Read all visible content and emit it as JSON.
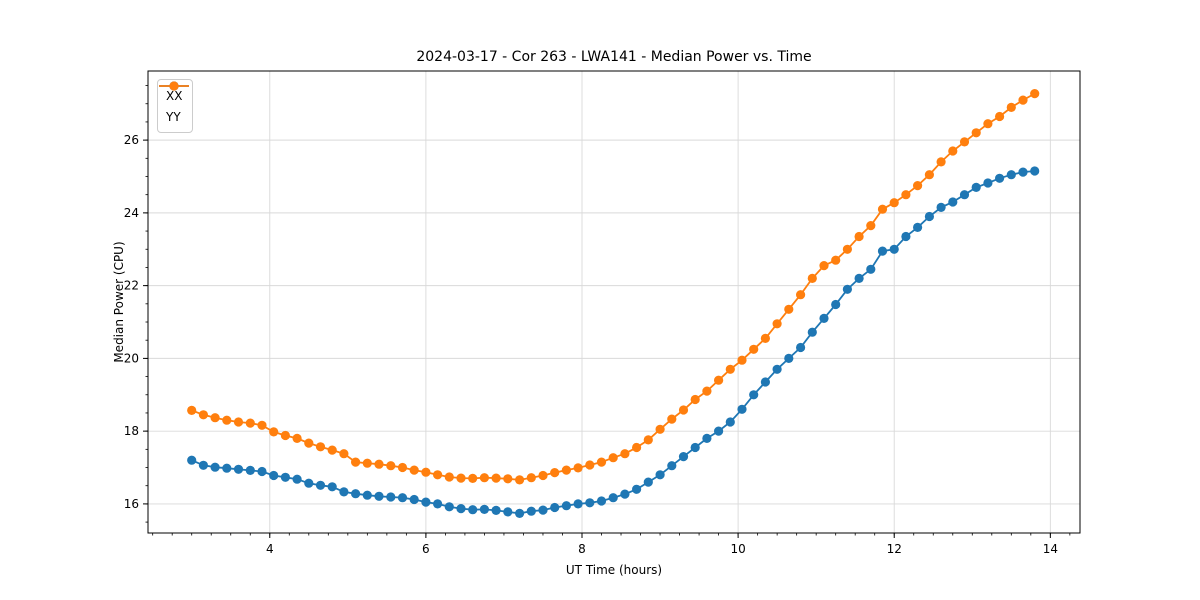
{
  "chart_data": {
    "type": "line",
    "title": "2024-03-17 - Cor 263 - LWA141 - Median Power vs. Time",
    "xlabel": "UT Time (hours)",
    "ylabel": "Median Power (CPU)",
    "xlim": [
      2.44,
      14.38
    ],
    "ylim": [
      15.2,
      27.9
    ],
    "xticks": [
      4,
      6,
      8,
      10,
      12,
      14
    ],
    "yticks": [
      16,
      18,
      20,
      22,
      24,
      26
    ],
    "minor_xtick_step": 0.25,
    "minor_ytick_step": 0.5,
    "grid": true,
    "grid_color": "#d9d9d9",
    "legend_position": "upper left",
    "background": "#ffffff",
    "x": [
      3.0,
      3.15,
      3.3,
      3.45,
      3.6,
      3.75,
      3.9,
      4.05,
      4.2,
      4.35,
      4.5,
      4.65,
      4.8,
      4.95,
      5.1,
      5.25,
      5.4,
      5.55,
      5.7,
      5.85,
      6.0,
      6.15,
      6.3,
      6.45,
      6.6,
      6.75,
      6.9,
      7.05,
      7.2,
      7.35,
      7.5,
      7.65,
      7.8,
      7.95,
      8.1,
      8.25,
      8.4,
      8.55,
      8.7,
      8.85,
      9.0,
      9.15,
      9.3,
      9.45,
      9.6,
      9.75,
      9.9,
      10.05,
      10.2,
      10.35,
      10.5,
      10.65,
      10.8,
      10.95,
      11.1,
      11.25,
      11.4,
      11.55,
      11.7,
      11.85,
      12.0,
      12.15,
      12.3,
      12.45,
      12.6,
      12.75,
      12.9,
      13.05,
      13.2,
      13.35,
      13.5,
      13.65,
      13.8
    ],
    "series": [
      {
        "name": "XX",
        "color": "#1f77b4",
        "marker": "circle",
        "values": [
          17.2,
          17.06,
          17.01,
          16.98,
          16.95,
          16.92,
          16.89,
          16.78,
          16.73,
          16.68,
          16.57,
          16.51,
          16.47,
          16.33,
          16.28,
          16.24,
          16.21,
          16.19,
          16.17,
          16.12,
          16.05,
          16.0,
          15.92,
          15.87,
          15.84,
          15.85,
          15.82,
          15.78,
          15.74,
          15.8,
          15.83,
          15.9,
          15.95,
          16.0,
          16.03,
          16.08,
          16.17,
          16.27,
          16.4,
          16.6,
          16.8,
          17.05,
          17.3,
          17.55,
          17.8,
          18.0,
          18.25,
          18.6,
          19.0,
          19.35,
          19.7,
          20.0,
          20.3,
          20.72,
          21.1,
          21.48,
          21.9,
          22.2,
          22.45,
          22.95,
          23.0,
          23.35,
          23.6,
          23.9,
          24.15,
          24.3,
          24.5,
          24.7,
          24.82,
          24.95,
          25.05,
          25.12,
          25.15
        ]
      },
      {
        "name": "YY",
        "color": "#ff7f0e",
        "marker": "circle",
        "values": [
          18.57,
          18.45,
          18.37,
          18.3,
          18.25,
          18.22,
          18.16,
          17.98,
          17.88,
          17.8,
          17.67,
          17.57,
          17.48,
          17.38,
          17.15,
          17.12,
          17.09,
          17.05,
          17.0,
          16.93,
          16.87,
          16.8,
          16.74,
          16.71,
          16.7,
          16.72,
          16.71,
          16.69,
          16.66,
          16.72,
          16.78,
          16.86,
          16.93,
          16.99,
          17.07,
          17.15,
          17.27,
          17.38,
          17.55,
          17.76,
          18.05,
          18.33,
          18.58,
          18.87,
          19.1,
          19.4,
          19.7,
          19.95,
          20.25,
          20.55,
          20.95,
          21.35,
          21.75,
          22.2,
          22.55,
          22.7,
          23.0,
          23.35,
          23.65,
          24.1,
          24.28,
          24.5,
          24.75,
          25.05,
          25.4,
          25.7,
          25.95,
          26.2,
          26.45,
          26.65,
          26.9,
          27.1,
          27.28
        ]
      }
    ]
  }
}
